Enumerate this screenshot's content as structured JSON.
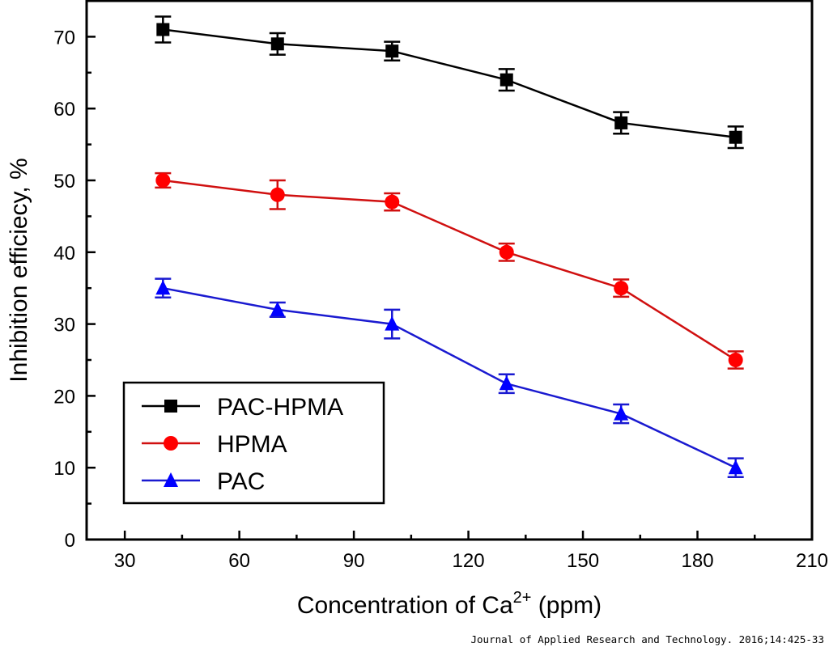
{
  "chart_data": {
    "type": "line",
    "title": "",
    "xlabel": "Concentration of Ca",
    "xlabel_sup": "2+",
    "xlabel_suffix": " (ppm)",
    "ylabel": "Inhibition efficiecy, %",
    "xlim": [
      20,
      210
    ],
    "ylim": [
      0,
      75
    ],
    "xticks": [
      30,
      60,
      90,
      120,
      150,
      180,
      210
    ],
    "yticks": [
      0,
      10,
      20,
      30,
      40,
      50,
      60,
      70
    ],
    "grid": false,
    "legend_position": "bottom-left",
    "x": [
      40,
      70,
      100,
      130,
      160,
      190
    ],
    "series": [
      {
        "name": "PAC-HPMA",
        "marker": "square",
        "color": "#000000",
        "line_color": "#000000",
        "values": [
          71,
          69,
          68,
          64,
          58,
          56
        ],
        "errors": [
          1.8,
          1.5,
          1.3,
          1.5,
          1.5,
          1.5
        ]
      },
      {
        "name": "HPMA",
        "marker": "circle",
        "color": "#ff0000",
        "line_color": "#d01010",
        "values": [
          50,
          48,
          47,
          40,
          35,
          25
        ],
        "errors": [
          1.0,
          2.0,
          1.2,
          1.2,
          1.2,
          1.2
        ]
      },
      {
        "name": "PAC",
        "marker": "triangle",
        "color": "#0000ff",
        "line_color": "#1a1ad0",
        "values": [
          35,
          32,
          30,
          21.7,
          17.5,
          10
        ],
        "errors": [
          1.3,
          1.0,
          2.0,
          1.3,
          1.3,
          1.3
        ]
      }
    ]
  },
  "citation": "Journal of Applied Research and Technology. 2016;14:425-33"
}
